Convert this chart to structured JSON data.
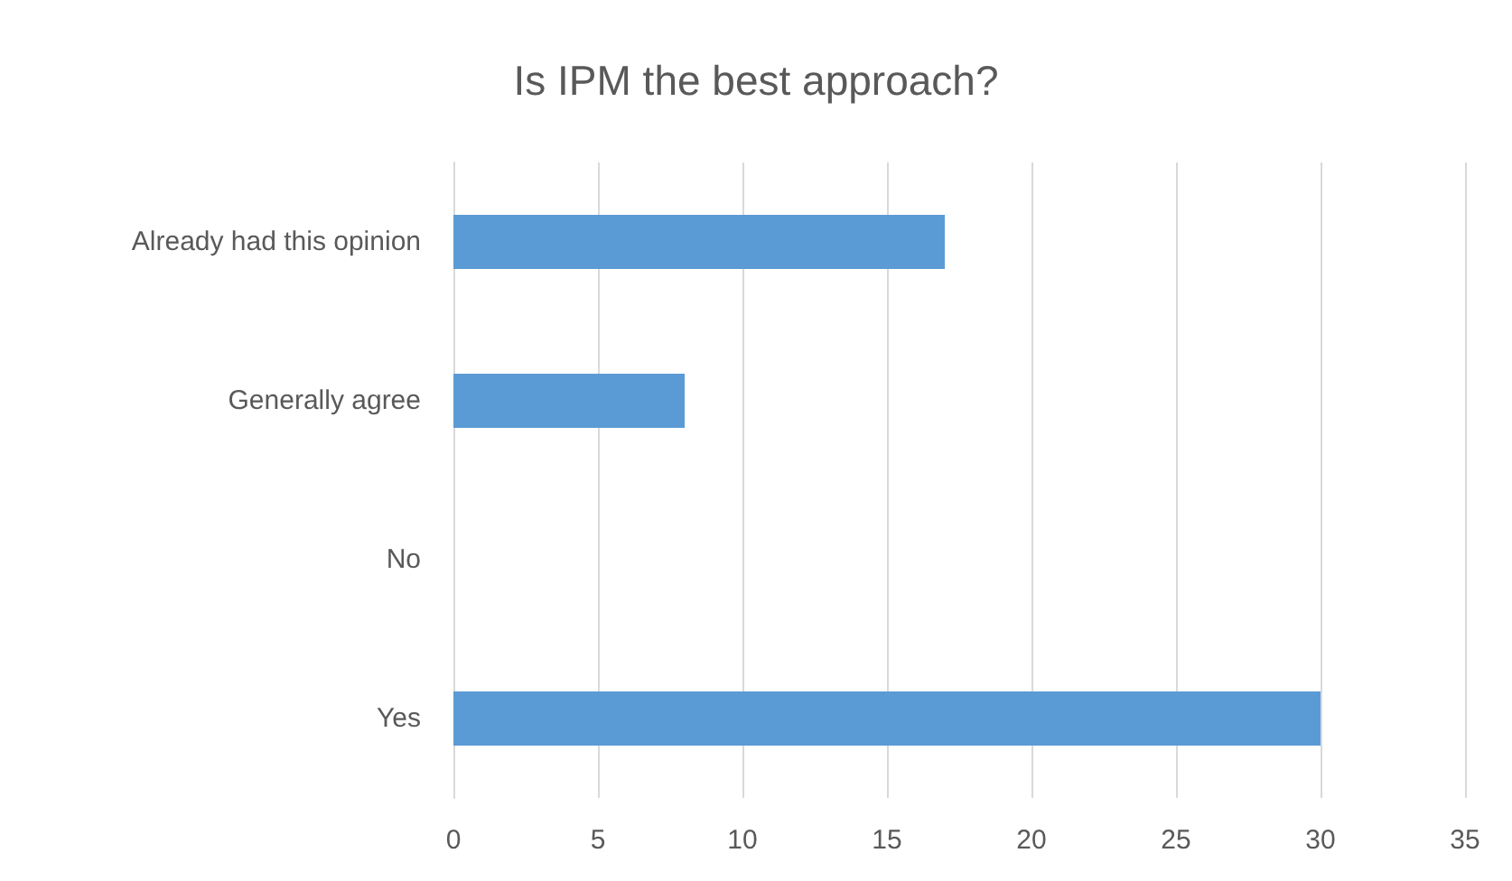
{
  "chart_data": {
    "type": "bar",
    "orientation": "horizontal",
    "title": "Is IPM the best approach?",
    "categories": [
      "Already had this opinion",
      "Generally agree",
      "No",
      "Yes"
    ],
    "values": [
      17,
      8,
      0,
      30
    ],
    "color": "#5b9bd5",
    "xlim": [
      0,
      35
    ],
    "xticks": [
      0,
      5,
      10,
      15,
      20,
      25,
      30,
      35
    ],
    "grid": "x"
  }
}
